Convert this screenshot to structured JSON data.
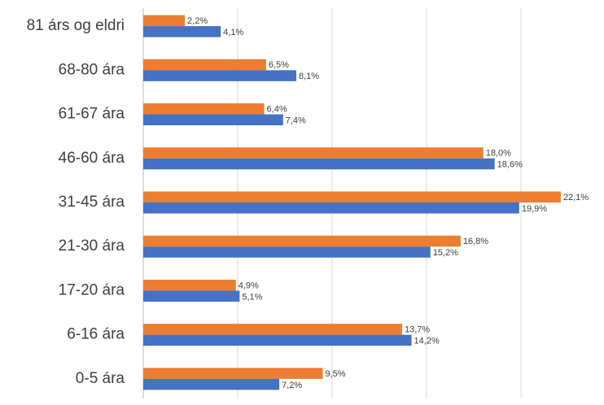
{
  "chart_data": {
    "type": "hbar",
    "categories": [
      "81 árs og eldri",
      "68-80 ára",
      "61-67 ára",
      "46-60 ára",
      "31-45 ára",
      "21-30 ára",
      "17-20 ára",
      "6-16 ára",
      "0-5 ára"
    ],
    "series": [
      {
        "color": "#ed7d31",
        "values": [
          2.2,
          6.5,
          6.4,
          18.0,
          22.1,
          16.8,
          4.9,
          13.7,
          9.5
        ],
        "value_labels": [
          "2,2%",
          "6,5%",
          "6,4%",
          "18,0%",
          "22,1%",
          "16,8%",
          "4,9%",
          "13,7%",
          "9,5%"
        ]
      },
      {
        "color": "#4472c4",
        "values": [
          4.1,
          8.1,
          7.4,
          18.6,
          19.9,
          15.2,
          5.1,
          14.2,
          7.2
        ],
        "value_labels": [
          "4,1%",
          "8,1%",
          "7,4%",
          "18,6%",
          "19,9%",
          "15,2%",
          "5,1%",
          "14,2%",
          "7,2%"
        ]
      }
    ],
    "xlim": [
      0,
      24
    ],
    "xticks": [
      0,
      5,
      10,
      15,
      20
    ],
    "grid": true
  }
}
